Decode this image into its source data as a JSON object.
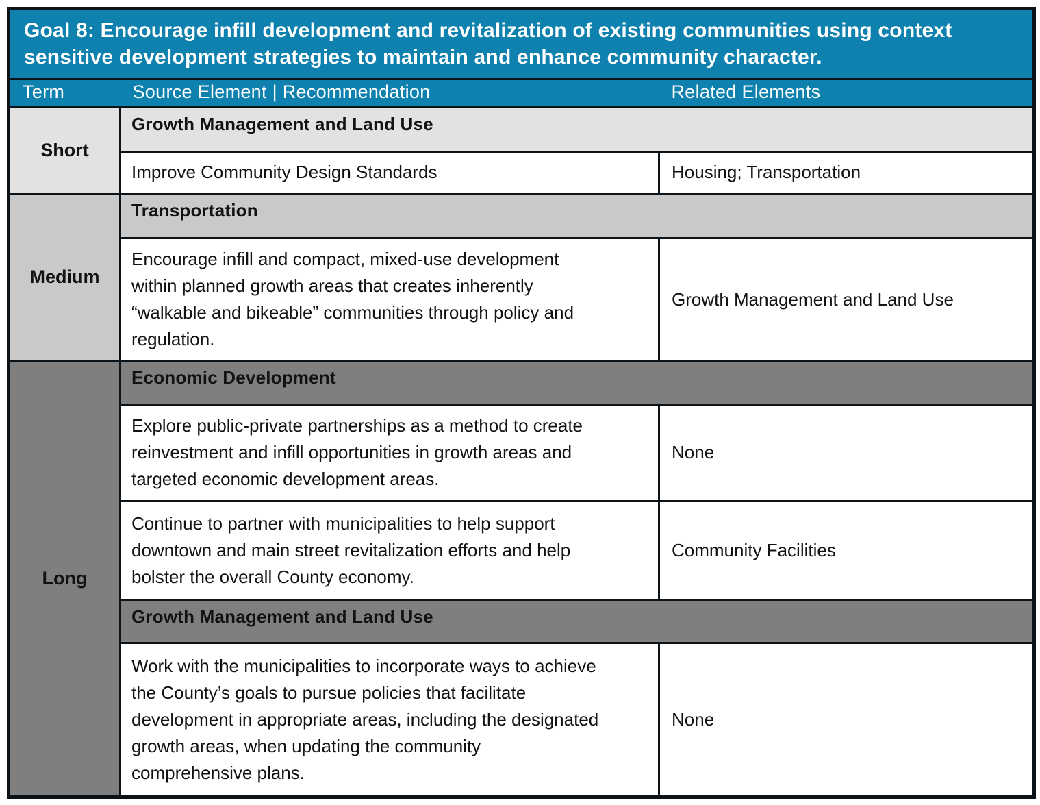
{
  "title": "Goal 8: Encourage infill development and revitalization of existing communities using context sensitive development strategies to maintain and enhance community character.",
  "columns": {
    "term": "Term",
    "source": "Source Element | Recommendation",
    "related": "Related Elements"
  },
  "colors": {
    "teal": "#0F81AE",
    "gray_light": "#E2E2E2",
    "gray_medium": "#C9C9C9",
    "gray_dark": "#7F7F7F",
    "border": "#0B1218",
    "header_text": "#FFFFFF",
    "body_text": "#121212"
  },
  "sections": [
    {
      "term": "Short",
      "shade": "light",
      "groups": [
        {
          "element": "Growth Management and Land Use",
          "recommendations": [
            {
              "text": "Improve Community Design Standards",
              "related": "Housing; Transportation"
            }
          ]
        }
      ]
    },
    {
      "term": "Medium",
      "shade": "medium",
      "groups": [
        {
          "element": "Transportation",
          "recommendations": [
            {
              "text": "Encourage infill and compact, mixed-use development within planned growth areas that creates inherently “walkable and bikeable” communities through policy and regulation.",
              "related": "Growth Management and Land Use"
            }
          ]
        }
      ]
    },
    {
      "term": "Long",
      "shade": "dark",
      "groups": [
        {
          "element": "Economic Development",
          "recommendations": [
            {
              "text": "Explore public-private partnerships as a method to create reinvestment and infill opportunities in growth areas and targeted economic development areas.",
              "related": "None"
            },
            {
              "text": "Continue to partner with municipalities to help support downtown and main street revitalization efforts and help bolster the overall County economy.",
              "related": "Community Facilities"
            }
          ]
        },
        {
          "element": "Growth Management and Land Use",
          "recommendations": [
            {
              "text": "Work with the municipalities to incorporate ways to achieve the County’s goals to pursue policies that facilitate development in appropriate areas, including the designated growth areas, when updating the community comprehensive plans.",
              "related": "None"
            }
          ]
        }
      ]
    }
  ]
}
